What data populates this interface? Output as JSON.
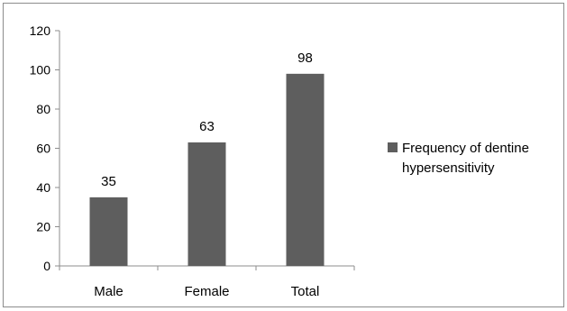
{
  "chart_data": {
    "type": "bar",
    "categories": [
      "Male",
      "Female",
      "Total"
    ],
    "series": [
      {
        "name": "Frequency of dentine hypersensitivity",
        "values": [
          35,
          63,
          98
        ],
        "color": "#5e5e5e"
      }
    ],
    "data_labels": [
      "35",
      "63",
      "98"
    ],
    "ylim": [
      0,
      120
    ],
    "y_ticks": [
      0,
      20,
      40,
      60,
      80,
      100,
      120
    ],
    "y_tick_labels": [
      "0",
      "20",
      "40",
      "60",
      "80",
      "100",
      "120"
    ],
    "grid": false,
    "legend_position": "right",
    "legend": {
      "line1": "Frequency of dentine",
      "line2": "hypersensitivity"
    }
  }
}
